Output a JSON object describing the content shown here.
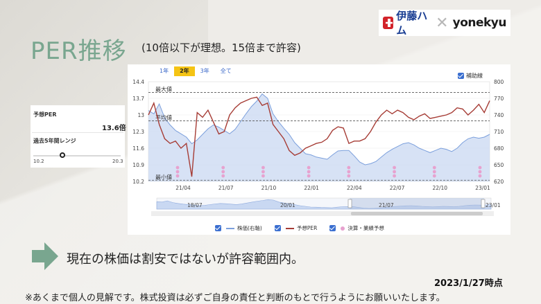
{
  "header": {
    "title": "PER推移",
    "subtitle": "(10倍以下が理想。15倍まで許容)",
    "logo_left": "伊藤ハム",
    "logo_right": "yonekyu"
  },
  "side_panel": {
    "per_label": "予想PER",
    "per_value": "13.6倍",
    "range_label": "過去5年間レンジ",
    "range_min": "10.2",
    "range_max": "20.3",
    "range_position": 0.33
  },
  "chart_controls": {
    "tabs": [
      "1年",
      "2年",
      "3年",
      "全て"
    ],
    "active_tab": "2年",
    "aux_line_label": "補助線",
    "aux_line_checked": true
  },
  "chart_data": {
    "type": "line",
    "x_ticks": [
      "21/04",
      "21/07",
      "21/10",
      "22/01",
      "22/04",
      "22/07",
      "22/10",
      "23/01"
    ],
    "y_left_ticks": [
      "14.4",
      "13.7",
      "13",
      "12.3",
      "11.6",
      "10.9",
      "10.2"
    ],
    "y_right_ticks": [
      "800",
      "770",
      "740",
      "710",
      "680",
      "650",
      "620"
    ],
    "ylim_left": [
      10.2,
      14.4
    ],
    "ylim_right": [
      620,
      800
    ],
    "reference_lines": [
      {
        "label": "最大値",
        "value": 13.95
      },
      {
        "label": "平均値",
        "value": 12.75
      },
      {
        "label": "最小値",
        "value": 10.25
      }
    ],
    "series": [
      {
        "name": "株価(右軸)",
        "axis": "right",
        "color": "#7b9fdc",
        "values": [
          748,
          742,
          760,
          735,
          722,
          712,
          706,
          700,
          688,
          695,
          705,
          715,
          722,
          718,
          712,
          706,
          714,
          728,
          742,
          755,
          765,
          778,
          770,
          742,
          728,
          716,
          705,
          690,
          680,
          670,
          668,
          664,
          662,
          660,
          668,
          675,
          676,
          676,
          666,
          655,
          650,
          652,
          656,
          664,
          672,
          678,
          683,
          688,
          690,
          686,
          680,
          676,
          672,
          676,
          680,
          678,
          674,
          680,
          690,
          697,
          700,
          698,
          700,
          705
        ]
      },
      {
        "name": "予想PER",
        "axis": "left",
        "color": "#a63c35",
        "values": [
          13.0,
          13.5,
          12.6,
          12.0,
          11.8,
          11.9,
          11.6,
          11.8,
          10.4,
          13.1,
          12.9,
          13.2,
          12.7,
          12.2,
          12.3,
          13.0,
          13.3,
          13.5,
          13.6,
          13.7,
          13.75,
          13.4,
          13.5,
          12.6,
          12.3,
          12.0,
          11.5,
          11.3,
          11.4,
          11.6,
          11.7,
          11.8,
          11.85,
          12.0,
          12.35,
          12.5,
          12.45,
          11.8,
          11.9,
          11.9,
          12.0,
          12.3,
          12.7,
          13.0,
          13.2,
          13.05,
          13.2,
          13.1,
          12.9,
          12.8,
          12.95,
          13.05,
          12.85,
          12.9,
          12.95,
          13.0,
          13.1,
          13.3,
          13.25,
          13.0,
          13.2,
          13.45,
          13.1,
          13.6
        ]
      }
    ],
    "events_label": "決算・業績予想",
    "events_x": [
      "21/04",
      "21/07",
      "21/10",
      "22/01",
      "22/04",
      "22/07",
      "22/10",
      "23/01"
    ],
    "navigator_ticks": [
      "18/07",
      "20/01",
      "21/07",
      "23/01"
    ]
  },
  "legend": {
    "price": "株価(右軸)",
    "per": "予想PER",
    "events": "決算・業績予想"
  },
  "footer": {
    "verdict": "現在の株価は割安ではないが許容範囲内。",
    "as_of": "2023/1/27時点",
    "disclaimer": "※あくまで個人の見解です。株式投資は必ずご自身の責任と判断のもとで行うようにお願いいたします。"
  },
  "colors": {
    "accent_green": "#79a68f",
    "per_line": "#a63c35",
    "price_line": "#7b9fdc",
    "event_dot": "#e7a2cf",
    "tab_active": "#f5c414"
  }
}
